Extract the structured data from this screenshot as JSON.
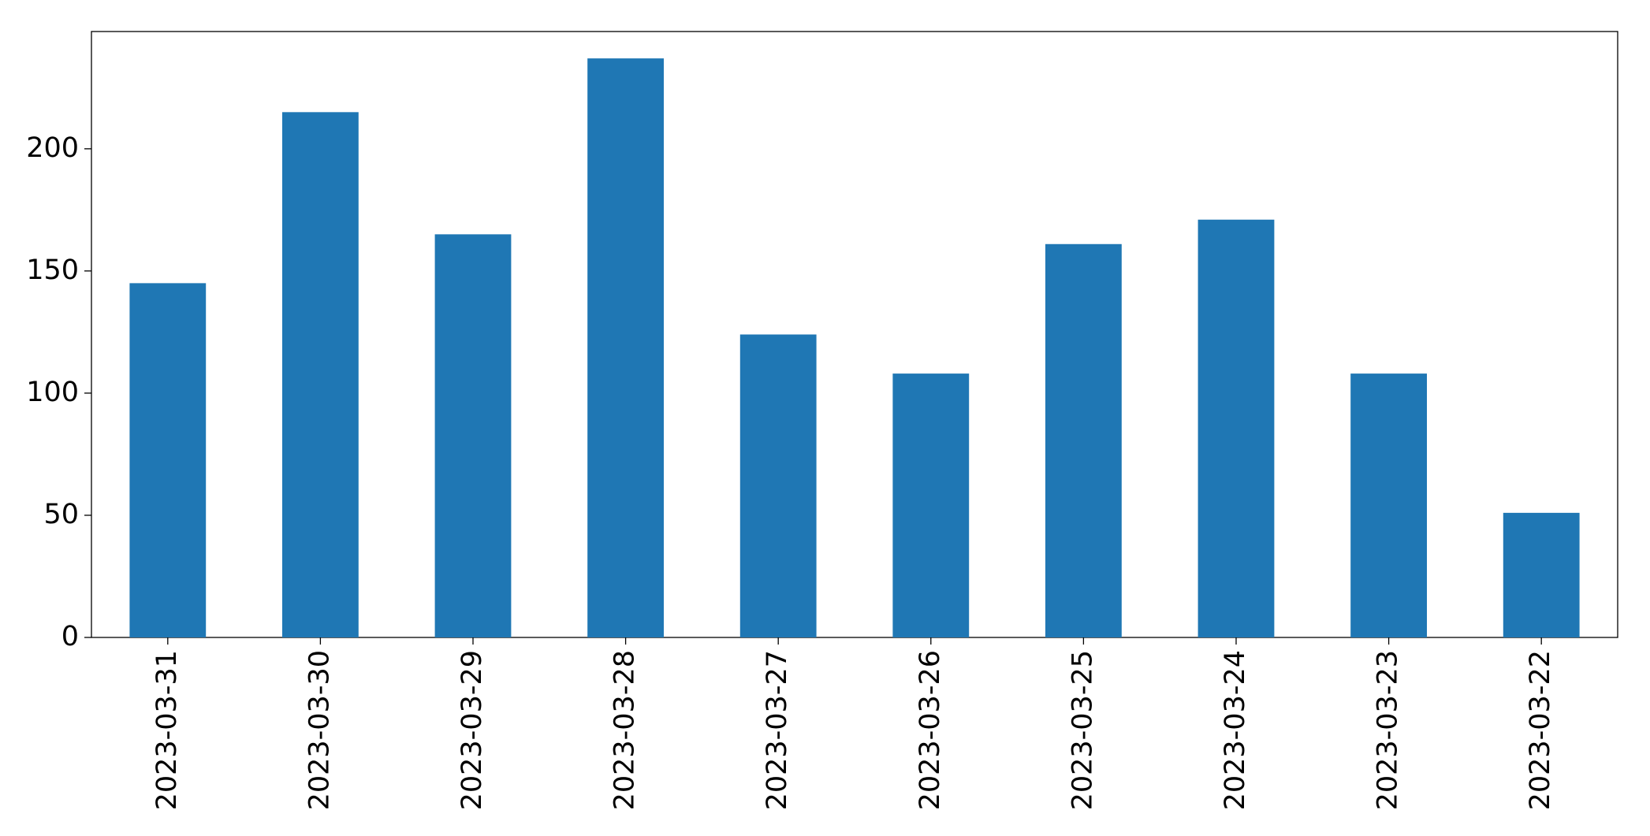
{
  "chart_data": {
    "type": "bar",
    "categories": [
      "2023-03-31",
      "2023-03-30",
      "2023-03-29",
      "2023-03-28",
      "2023-03-27",
      "2023-03-26",
      "2023-03-25",
      "2023-03-24",
      "2023-03-23",
      "2023-03-22"
    ],
    "values": [
      145,
      215,
      165,
      237,
      124,
      108,
      161,
      171,
      108,
      51
    ],
    "color": "#1f77b4",
    "ylim": [
      0,
      248
    ],
    "yticks": [
      0,
      50,
      100,
      150,
      200
    ],
    "grid": false
  }
}
